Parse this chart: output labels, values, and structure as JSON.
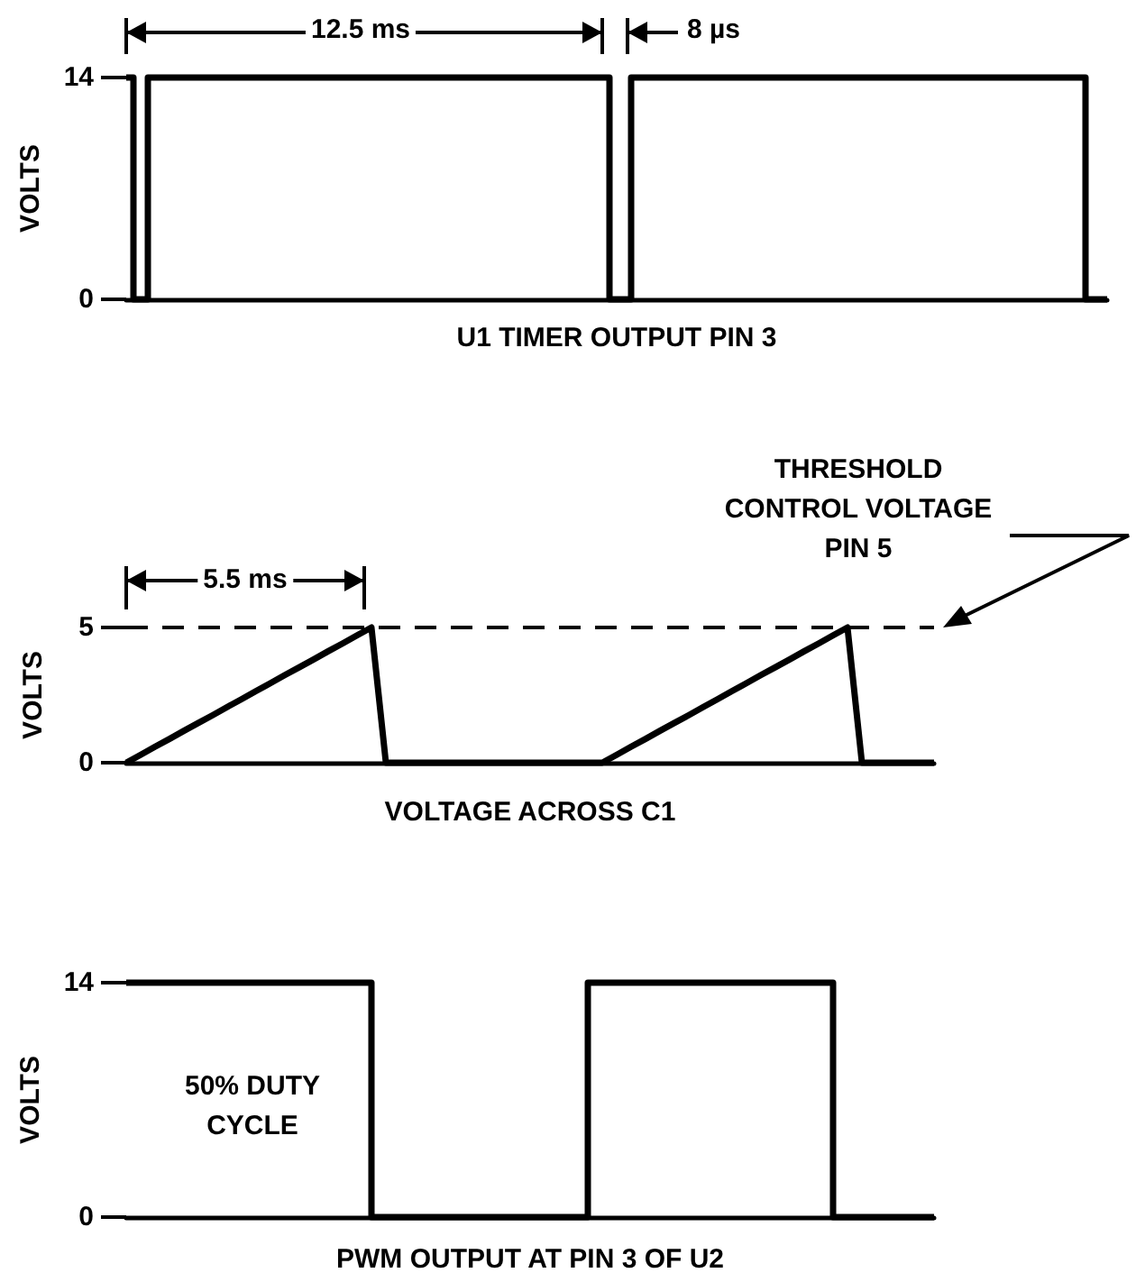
{
  "chart_data": [
    {
      "type": "step",
      "xlabel": "U1 TIMER OUTPUT PIN 3",
      "ylabel": "VOLTS",
      "color": "#000000",
      "ylim": [
        0,
        14
      ],
      "yticks": [
        0,
        14
      ],
      "tick_labels": "y",
      "annotations": [
        "12.5 ms",
        "8 µs"
      ],
      "categories": [
        null,
        null,
        null,
        null,
        null,
        null,
        null,
        null,
        null,
        null,
        null,
        null,
        null,
        null,
        null,
        null,
        null,
        null,
        null,
        null,
        null,
        null,
        null,
        null,
        null,
        null,
        null,
        null,
        null,
        null,
        null,
        null,
        null,
        null,
        null,
        null,
        null,
        null,
        null,
        null,
        null,
        null,
        null,
        null,
        null,
        null,
        null,
        null,
        null,
        null,
        null,
        null,
        null,
        null,
        null,
        null,
        null,
        null,
        null,
        null,
        null,
        null,
        null,
        null,
        null,
        null,
        null,
        null,
        null,
        null,
        null,
        null,
        null,
        null,
        null,
        null,
        null,
        null,
        null,
        null,
        null,
        null,
        null,
        null,
        null,
        null,
        null,
        null,
        null,
        null,
        null,
        null,
        null,
        null,
        null,
        null,
        null,
        null,
        null,
        null,
        null,
        null,
        null,
        null,
        null,
        null,
        null,
        null,
        null,
        null,
        null,
        null,
        null,
        null,
        null,
        null,
        null,
        null,
        null,
        null,
        null,
        null,
        null,
        null,
        null,
        null,
        null,
        null,
        null,
        null,
        null,
        null,
        null,
        null,
        null,
        null,
        null
      ],
      "values": [
        14,
        0,
        0,
        14,
        14,
        14,
        14,
        14,
        14,
        14,
        14,
        14,
        14,
        14,
        14,
        14,
        14,
        14,
        14,
        14,
        14,
        14,
        14,
        14,
        14,
        14,
        14,
        14,
        14,
        14,
        14,
        14,
        14,
        14,
        14,
        14,
        14,
        14,
        14,
        14,
        14,
        14,
        14,
        14,
        14,
        14,
        14,
        14,
        14,
        14,
        14,
        14,
        14,
        14,
        14,
        14,
        14,
        14,
        14,
        14,
        14,
        14,
        14,
        14,
        14,
        14,
        14,
        0,
        0,
        0,
        14,
        14,
        14,
        14,
        14,
        14,
        14,
        14,
        14,
        14,
        14,
        14,
        14,
        14,
        14,
        14,
        14,
        14,
        14,
        14,
        14,
        14,
        14,
        14,
        14,
        14,
        14,
        14,
        14,
        14,
        14,
        14,
        14,
        14,
        14,
        14,
        14,
        14,
        14,
        14,
        14,
        14,
        14,
        14,
        14,
        14,
        14,
        14,
        14,
        14,
        14,
        14,
        14,
        14,
        14,
        14,
        14,
        14,
        14,
        14,
        14,
        14,
        14,
        0,
        0,
        0,
        0
      ]
    },
    {
      "type": "line",
      "xlabel": "VOLTAGE ACROSS C1",
      "ylabel": "VOLTS",
      "color": "#000000",
      "ylim": [
        0,
        5
      ],
      "yticks": [
        0,
        5
      ],
      "tick_labels": "y",
      "annotations": [
        "5.5 ms"
      ],
      "ref_lines": [
        {
          "axis": "y",
          "value": 5,
          "label": "THRESHOLD CONTROL VOLTAGE PIN 5",
          "line_style": "dashed",
          "color": "#000000"
        }
      ],
      "categories": [
        null,
        null,
        null,
        null,
        null,
        null,
        null,
        null,
        null,
        null,
        null,
        null,
        null,
        null,
        null,
        null,
        null,
        null,
        null,
        null,
        null,
        null,
        null,
        null,
        null,
        null,
        null,
        null,
        null,
        null,
        null,
        null,
        null,
        null,
        null,
        null,
        null,
        null,
        null,
        null,
        null,
        null,
        null,
        null,
        null,
        null,
        null,
        null,
        null,
        null,
        null,
        null,
        null,
        null,
        null,
        null,
        null
      ],
      "values": [
        0,
        0.29,
        0.59,
        0.88,
        1.18,
        1.47,
        1.76,
        2.06,
        2.35,
        2.65,
        2.94,
        3.24,
        3.53,
        3.82,
        4.12,
        4.41,
        4.71,
        5,
        0,
        0,
        0,
        0,
        0,
        0,
        0,
        0,
        0,
        0,
        0,
        0,
        0,
        0,
        0,
        0,
        0.29,
        0.59,
        0.88,
        1.18,
        1.47,
        1.76,
        2.06,
        2.35,
        2.65,
        2.94,
        3.24,
        3.53,
        3.82,
        4.12,
        4.41,
        4.71,
        5,
        0,
        0,
        0,
        0,
        0,
        0
      ]
    },
    {
      "type": "step",
      "xlabel": "PWM OUTPUT AT PIN 3 OF U2",
      "ylabel": "VOLTS",
      "color": "#000000",
      "ylim": [
        0,
        14
      ],
      "yticks": [
        0,
        14
      ],
      "tick_labels": "y",
      "annotations": [
        "50% DUTY CYCLE"
      ],
      "categories": [
        null,
        null,
        null,
        null,
        null,
        null,
        null,
        null,
        null,
        null,
        null,
        null,
        null,
        null,
        null,
        null,
        null,
        null,
        null,
        null,
        null,
        null,
        null,
        null,
        null,
        null,
        null,
        null,
        null,
        null,
        null,
        null,
        null,
        null,
        null,
        null,
        null,
        null,
        null,
        null,
        null,
        null,
        null,
        null,
        null,
        null,
        null,
        null,
        null,
        null,
        null,
        null,
        null,
        null,
        null,
        null,
        null
      ],
      "values": [
        14,
        14,
        14,
        14,
        14,
        14,
        14,
        14,
        14,
        14,
        14,
        14,
        14,
        14,
        14,
        14,
        14,
        0,
        0,
        0,
        0,
        0,
        0,
        0,
        0,
        0,
        0,
        0,
        0,
        0,
        0,
        0,
        14,
        14,
        14,
        14,
        14,
        14,
        14,
        14,
        14,
        14,
        14,
        14,
        14,
        14,
        14,
        14,
        14,
        0,
        0,
        0,
        0,
        0,
        0,
        0,
        0
      ]
    }
  ]
}
